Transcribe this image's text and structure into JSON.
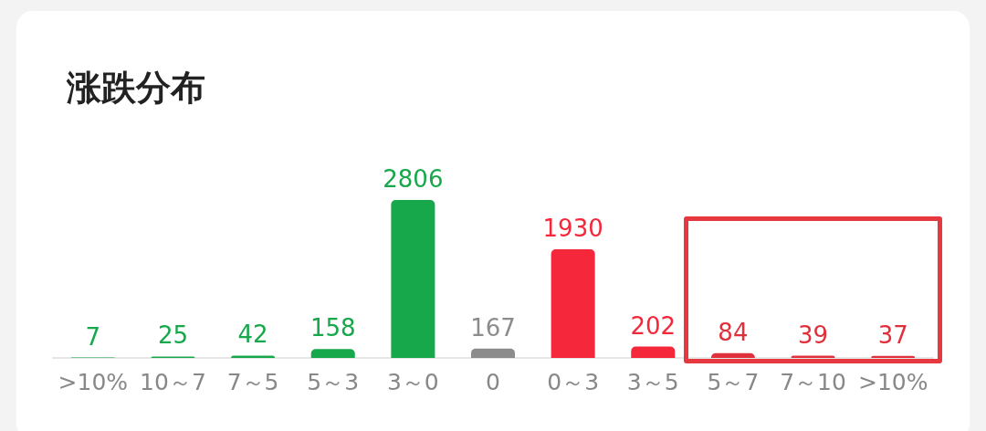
{
  "chart_data": {
    "type": "bar",
    "title": "涨跌分布",
    "categories": [
      ">10%",
      "10～7",
      "7～5",
      "5～3",
      "3～0",
      "0",
      "0～3",
      "3～5",
      "5～7",
      "7～10",
      ">10%"
    ],
    "values": [
      7,
      25,
      42,
      158,
      2806,
      167,
      1930,
      202,
      84,
      39,
      37
    ],
    "colors": [
      "#16a84a",
      "#16a84a",
      "#16a84a",
      "#16a84a",
      "#16a84a",
      "#8c8c8c",
      "#f5273a",
      "#f5273a",
      "#e0303c",
      "#e0303c",
      "#e0303c"
    ],
    "data_labels": true
  }
}
